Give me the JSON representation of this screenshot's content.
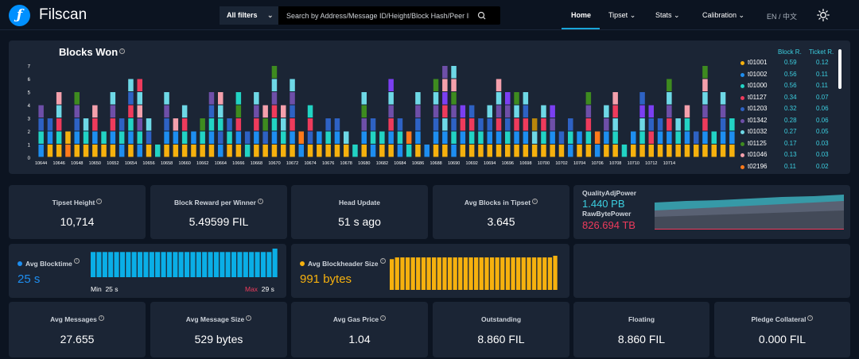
{
  "app": {
    "name": "Filscan"
  },
  "search": {
    "filter_label": "All filters",
    "placeholder": "Search by Address/Message ID/Height/Block Hash/Peer ID"
  },
  "nav": {
    "home": "Home",
    "tipset": "Tipset",
    "stats": "Stats",
    "calibration": "Calibration",
    "lang": "EN / 中文"
  },
  "blocks_won": {
    "title": "Blocks Won",
    "legend_headers": {
      "block_reward": "Block R.",
      "ticket_reward": "Ticket R."
    },
    "legend": [
      {
        "name": "t01001",
        "block": "0.59",
        "ticket": "0.12",
        "color": "#f6b10e"
      },
      {
        "name": "t01002",
        "block": "0.56",
        "ticket": "0.11",
        "color": "#1e8ef0"
      },
      {
        "name": "t01000",
        "block": "0.56",
        "ticket": "0.11",
        "color": "#22d3c4"
      },
      {
        "name": "t01127",
        "block": "0.34",
        "ticket": "0.07",
        "color": "#ee3b5c"
      },
      {
        "name": "t01203",
        "block": "0.32",
        "ticket": "0.06",
        "color": "#2e62c4"
      },
      {
        "name": "t01342",
        "block": "0.28",
        "ticket": "0.06",
        "color": "#6e4fa8"
      },
      {
        "name": "t01032",
        "block": "0.27",
        "ticket": "0.05",
        "color": "#6ed8e6"
      },
      {
        "name": "t01125",
        "block": "0.17",
        "ticket": "0.03",
        "color": "#3e8b1f"
      },
      {
        "name": "t01046",
        "block": "0.13",
        "ticket": "0.03",
        "color": "#f4a0ac"
      },
      {
        "name": "t02196",
        "block": "0.11",
        "ticket": "0.02",
        "color": "#ff7a1a"
      }
    ]
  },
  "chart_data": {
    "type": "bar",
    "title": "Blocks Won",
    "ylim": [
      0,
      7
    ],
    "yticks": [
      "0",
      "1",
      "2",
      "3",
      "4",
      "5",
      "6",
      "7"
    ],
    "x_start": 10644,
    "xtick_labels": [
      "10644",
      "10646",
      "10648",
      "10650",
      "10652",
      "10654",
      "10656",
      "10658",
      "10660",
      "10662",
      "10664",
      "10666",
      "10668",
      "10670",
      "10672",
      "10674",
      "10676",
      "10678",
      "10680",
      "10682",
      "10684",
      "10686",
      "10688",
      "10690",
      "10692",
      "10694",
      "10696",
      "10698",
      "10700",
      "10702",
      "10704",
      "10706",
      "10708",
      "10710",
      "10712",
      "10714"
    ],
    "palette": [
      "#f6b10e",
      "#1e8ef0",
      "#22d3c4",
      "#ee3b5c",
      "#2e62c4",
      "#6e4fa8",
      "#6ed8e6",
      "#3e8b1f",
      "#f4a0ac",
      "#ff7a1a",
      "#7b3ff2",
      "#b8860b"
    ],
    "stacks": [
      [
        1,
        2,
        4,
        5
      ],
      [
        0,
        1,
        4
      ],
      [
        0,
        2,
        3,
        6,
        8
      ],
      [
        9,
        0
      ],
      [
        0,
        1,
        4,
        5,
        7
      ],
      [
        0,
        2,
        6
      ],
      [
        0,
        1,
        3,
        8
      ],
      [
        0,
        2
      ],
      [
        0,
        1,
        3,
        5,
        6
      ],
      [
        1,
        2,
        4
      ],
      [
        0,
        1,
        2,
        3,
        4,
        6
      ],
      [
        1,
        2,
        5,
        8,
        6,
        3
      ],
      [
        0,
        4,
        6
      ],
      [
        2
      ],
      [
        0,
        1,
        4,
        5,
        6
      ],
      [
        0,
        1,
        8
      ],
      [
        0,
        2,
        3,
        6
      ],
      [
        0,
        1
      ],
      [
        0,
        2,
        7
      ],
      [
        0,
        1,
        2,
        4,
        5
      ],
      [
        1,
        4,
        2,
        6,
        8
      ],
      [
        0,
        2,
        4
      ],
      [
        0,
        1,
        3,
        7,
        2
      ],
      [
        2,
        4
      ],
      [
        0,
        1,
        3,
        5,
        6
      ],
      [
        0,
        4,
        7,
        8
      ],
      [
        0,
        1,
        2,
        3,
        5,
        6,
        7
      ],
      [
        0,
        2,
        6,
        8
      ],
      [
        0,
        1,
        3,
        4,
        5,
        6
      ],
      [
        1,
        9
      ],
      [
        0,
        4,
        3,
        2
      ],
      [
        0,
        1
      ],
      [
        0,
        2,
        4
      ],
      [
        0,
        1,
        4
      ],
      [
        0,
        6
      ],
      [
        2
      ],
      [
        0,
        1,
        5,
        7,
        6
      ],
      [
        1,
        2,
        4
      ],
      [
        0,
        2
      ],
      [
        0,
        1,
        3,
        5,
        6,
        10
      ],
      [
        1,
        2,
        4
      ],
      [
        2,
        9
      ],
      [
        0,
        1,
        4,
        5,
        6
      ],
      [
        1
      ],
      [
        0,
        1,
        4,
        5,
        6,
        7
      ],
      [
        0,
        1,
        6,
        3,
        10,
        8,
        5
      ],
      [
        1,
        2,
        4,
        5,
        7,
        8,
        6
      ],
      [
        0,
        1,
        3,
        10
      ],
      [
        0,
        2,
        3,
        4
      ],
      [
        0,
        2,
        4
      ],
      [
        0,
        1,
        4,
        6
      ],
      [
        0,
        1,
        3,
        5,
        6,
        8
      ],
      [
        0,
        2,
        4,
        5,
        10
      ],
      [
        0,
        1,
        3,
        6,
        7
      ],
      [
        0,
        1,
        3,
        4,
        6
      ],
      [
        0,
        6,
        11
      ],
      [
        0,
        2,
        3,
        6
      ],
      [
        0,
        1,
        5,
        10
      ],
      [
        0,
        4
      ],
      [
        1,
        2,
        4
      ],
      [
        0,
        1
      ],
      [
        0,
        2,
        3,
        5,
        7
      ],
      [
        1,
        9
      ],
      [
        0,
        1,
        5,
        6
      ],
      [
        0,
        2,
        6,
        3,
        8
      ],
      [
        2
      ],
      [
        0,
        1
      ],
      [
        0,
        2,
        6,
        10,
        4
      ],
      [
        0,
        3,
        4,
        10
      ],
      [
        0,
        1,
        4
      ],
      [
        0,
        1,
        3,
        5,
        6,
        7
      ],
      [
        0,
        2,
        6
      ],
      [
        0,
        1,
        2,
        8
      ],
      [
        0,
        4
      ],
      [
        0,
        1,
        3,
        5,
        6,
        8,
        7
      ],
      [
        0,
        2
      ],
      [
        0,
        1,
        4,
        5,
        6
      ],
      [
        0,
        1,
        2
      ]
    ]
  },
  "stats_row1": [
    {
      "label": "Tipset Height",
      "value": "10,714"
    },
    {
      "label": "Block Reward per Winner",
      "value": "5.49599 FIL"
    },
    {
      "label": "Head Update",
      "value": "51 s ago"
    },
    {
      "label": "Avg Blocks in Tipset",
      "value": "3.645"
    }
  ],
  "power": {
    "qa_label": "QualityAdjPower",
    "qa_value": "1.440 PB",
    "raw_label": "RawBytePower",
    "raw_value": "826.694 TB",
    "qa_color": "#3ccfe0",
    "raw_color": "#ee3b5c"
  },
  "blocktime": {
    "label": "Avg Blocktime",
    "value": "25 s",
    "min_label": "Min",
    "min_value": "25 s",
    "max_label": "Max",
    "max_value": "29 s",
    "bars": [
      0.88,
      0.88,
      0.88,
      0.88,
      0.88,
      0.88,
      0.88,
      0.88,
      0.88,
      0.88,
      0.88,
      0.88,
      0.88,
      0.88,
      0.88,
      0.88,
      0.88,
      0.88,
      0.88,
      0.88,
      0.88,
      0.88,
      0.88,
      0.88,
      0.88,
      0.88,
      0.88,
      0.88,
      0.88,
      0.88,
      0.88,
      1.0
    ]
  },
  "blockheader": {
    "label": "Avg Blockheader Size",
    "value": "991 bytes",
    "bars": [
      0.9,
      0.95,
      0.95,
      0.95,
      0.95,
      0.95,
      0.95,
      0.95,
      0.95,
      0.95,
      0.95,
      0.95,
      0.95,
      0.95,
      0.95,
      0.95,
      0.95,
      0.95,
      0.95,
      0.95,
      0.95,
      0.95,
      0.95,
      0.95,
      0.95,
      0.95,
      0.95,
      0.95,
      0.95,
      0.95,
      0.95,
      1.0
    ]
  },
  "stats_row3": [
    {
      "label": "Avg Messages",
      "value": "27.655"
    },
    {
      "label": "Avg Message Size",
      "value": "529 bytes"
    },
    {
      "label": "Avg Gas Price",
      "value": "1.04"
    },
    {
      "label": "Outstanding",
      "value": "8.860 FIL"
    },
    {
      "label": "Floating",
      "value": "8.860 FIL"
    },
    {
      "label": "Pledge Collateral",
      "value": "0.000 FIL"
    }
  ]
}
